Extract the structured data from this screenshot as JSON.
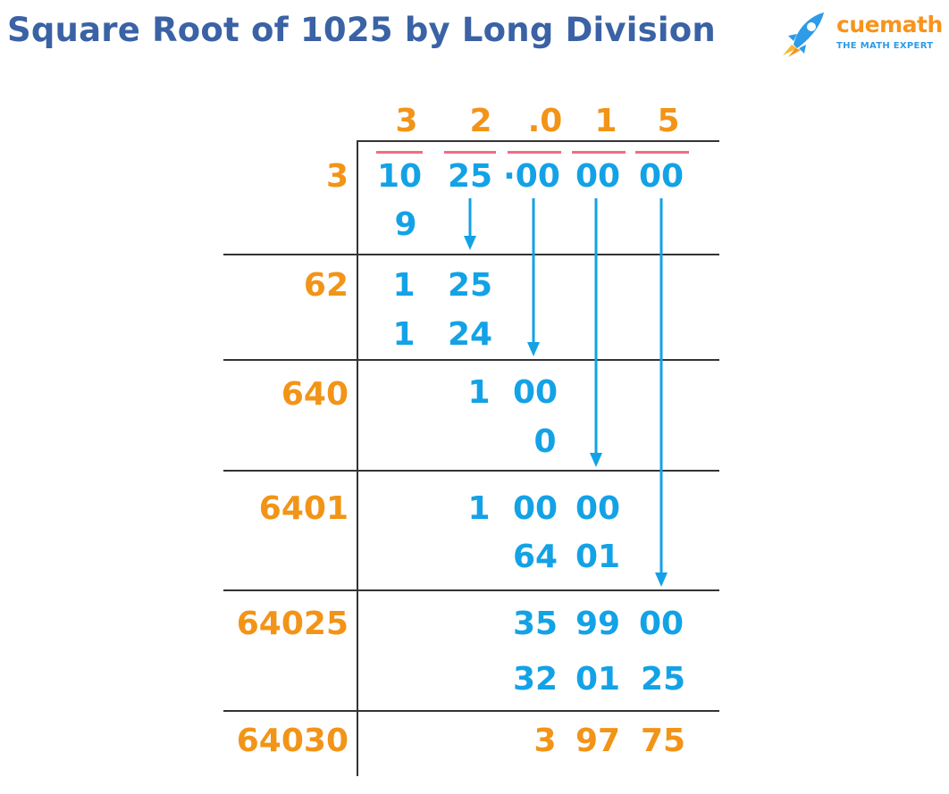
{
  "title": "Square Root of 1025 by Long Division",
  "brand": {
    "name": "cuemath",
    "tagline": "THE MATH EXPERT"
  },
  "colors": {
    "title": "#3a62a5",
    "quotient_and_divisor": "#f29417",
    "working": "#13a2e6",
    "pair_bar": "#f06d84",
    "rule": "#333333"
  },
  "quotient": [
    "3",
    "2",
    ".0",
    "1",
    "5"
  ],
  "dividend_groups": [
    "10",
    "25",
    "·00",
    "00",
    "00"
  ],
  "divisors": [
    "3",
    "62",
    "640",
    "6401",
    "64025",
    "64030"
  ],
  "working": {
    "step1": {
      "subtract": "9"
    },
    "step2": {
      "dividend": [
        "1",
        "25"
      ],
      "subtract": [
        "1",
        "24"
      ]
    },
    "step3": {
      "dividend": [
        "1",
        "00"
      ],
      "subtract": [
        "0"
      ]
    },
    "step4": {
      "dividend": [
        "1",
        "00",
        "00"
      ],
      "subtract": [
        "64",
        "01"
      ]
    },
    "step5": {
      "dividend": [
        "35",
        "99",
        "00"
      ],
      "subtract": [
        "32",
        "01",
        "25"
      ]
    },
    "remainder": [
      "3",
      "97",
      "75"
    ]
  }
}
